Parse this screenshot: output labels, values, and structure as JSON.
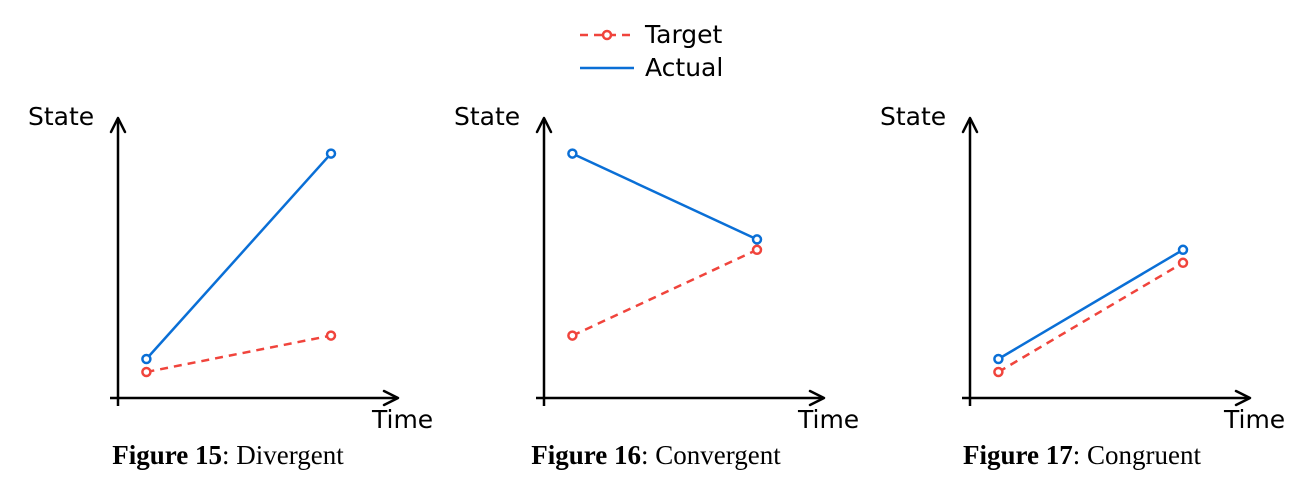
{
  "colors": {
    "target": "#f0443c",
    "actual": "#0a6fd6",
    "axis": "#000000"
  },
  "legend": {
    "target_label": "Target",
    "actual_label": "Actual"
  },
  "chart_data": [
    {
      "type": "line",
      "title": "Divergent",
      "figure_label": "Figure 15",
      "xlabel": "Time",
      "ylabel": "State",
      "xlim": [
        0,
        10
      ],
      "ylim": [
        0,
        10
      ],
      "series": [
        {
          "name": "Target",
          "x": [
            1,
            7.5
          ],
          "y": [
            1,
            2.4
          ]
        },
        {
          "name": "Actual",
          "x": [
            1,
            7.5
          ],
          "y": [
            1.5,
            9.4
          ]
        }
      ]
    },
    {
      "type": "line",
      "title": "Convergent",
      "figure_label": "Figure 16",
      "xlabel": "Time",
      "ylabel": "State",
      "xlim": [
        0,
        10
      ],
      "ylim": [
        0,
        10
      ],
      "series": [
        {
          "name": "Target",
          "x": [
            1,
            7.5
          ],
          "y": [
            2.4,
            5.7
          ]
        },
        {
          "name": "Actual",
          "x": [
            1,
            7.5
          ],
          "y": [
            9.4,
            6.1
          ]
        }
      ]
    },
    {
      "type": "line",
      "title": "Congruent",
      "figure_label": "Figure 17",
      "xlabel": "Time",
      "ylabel": "State",
      "xlim": [
        0,
        10
      ],
      "ylim": [
        0,
        10
      ],
      "series": [
        {
          "name": "Target",
          "x": [
            1,
            7.5
          ],
          "y": [
            1,
            5.2
          ]
        },
        {
          "name": "Actual",
          "x": [
            1,
            7.5
          ],
          "y": [
            1.5,
            5.7
          ]
        }
      ]
    }
  ]
}
